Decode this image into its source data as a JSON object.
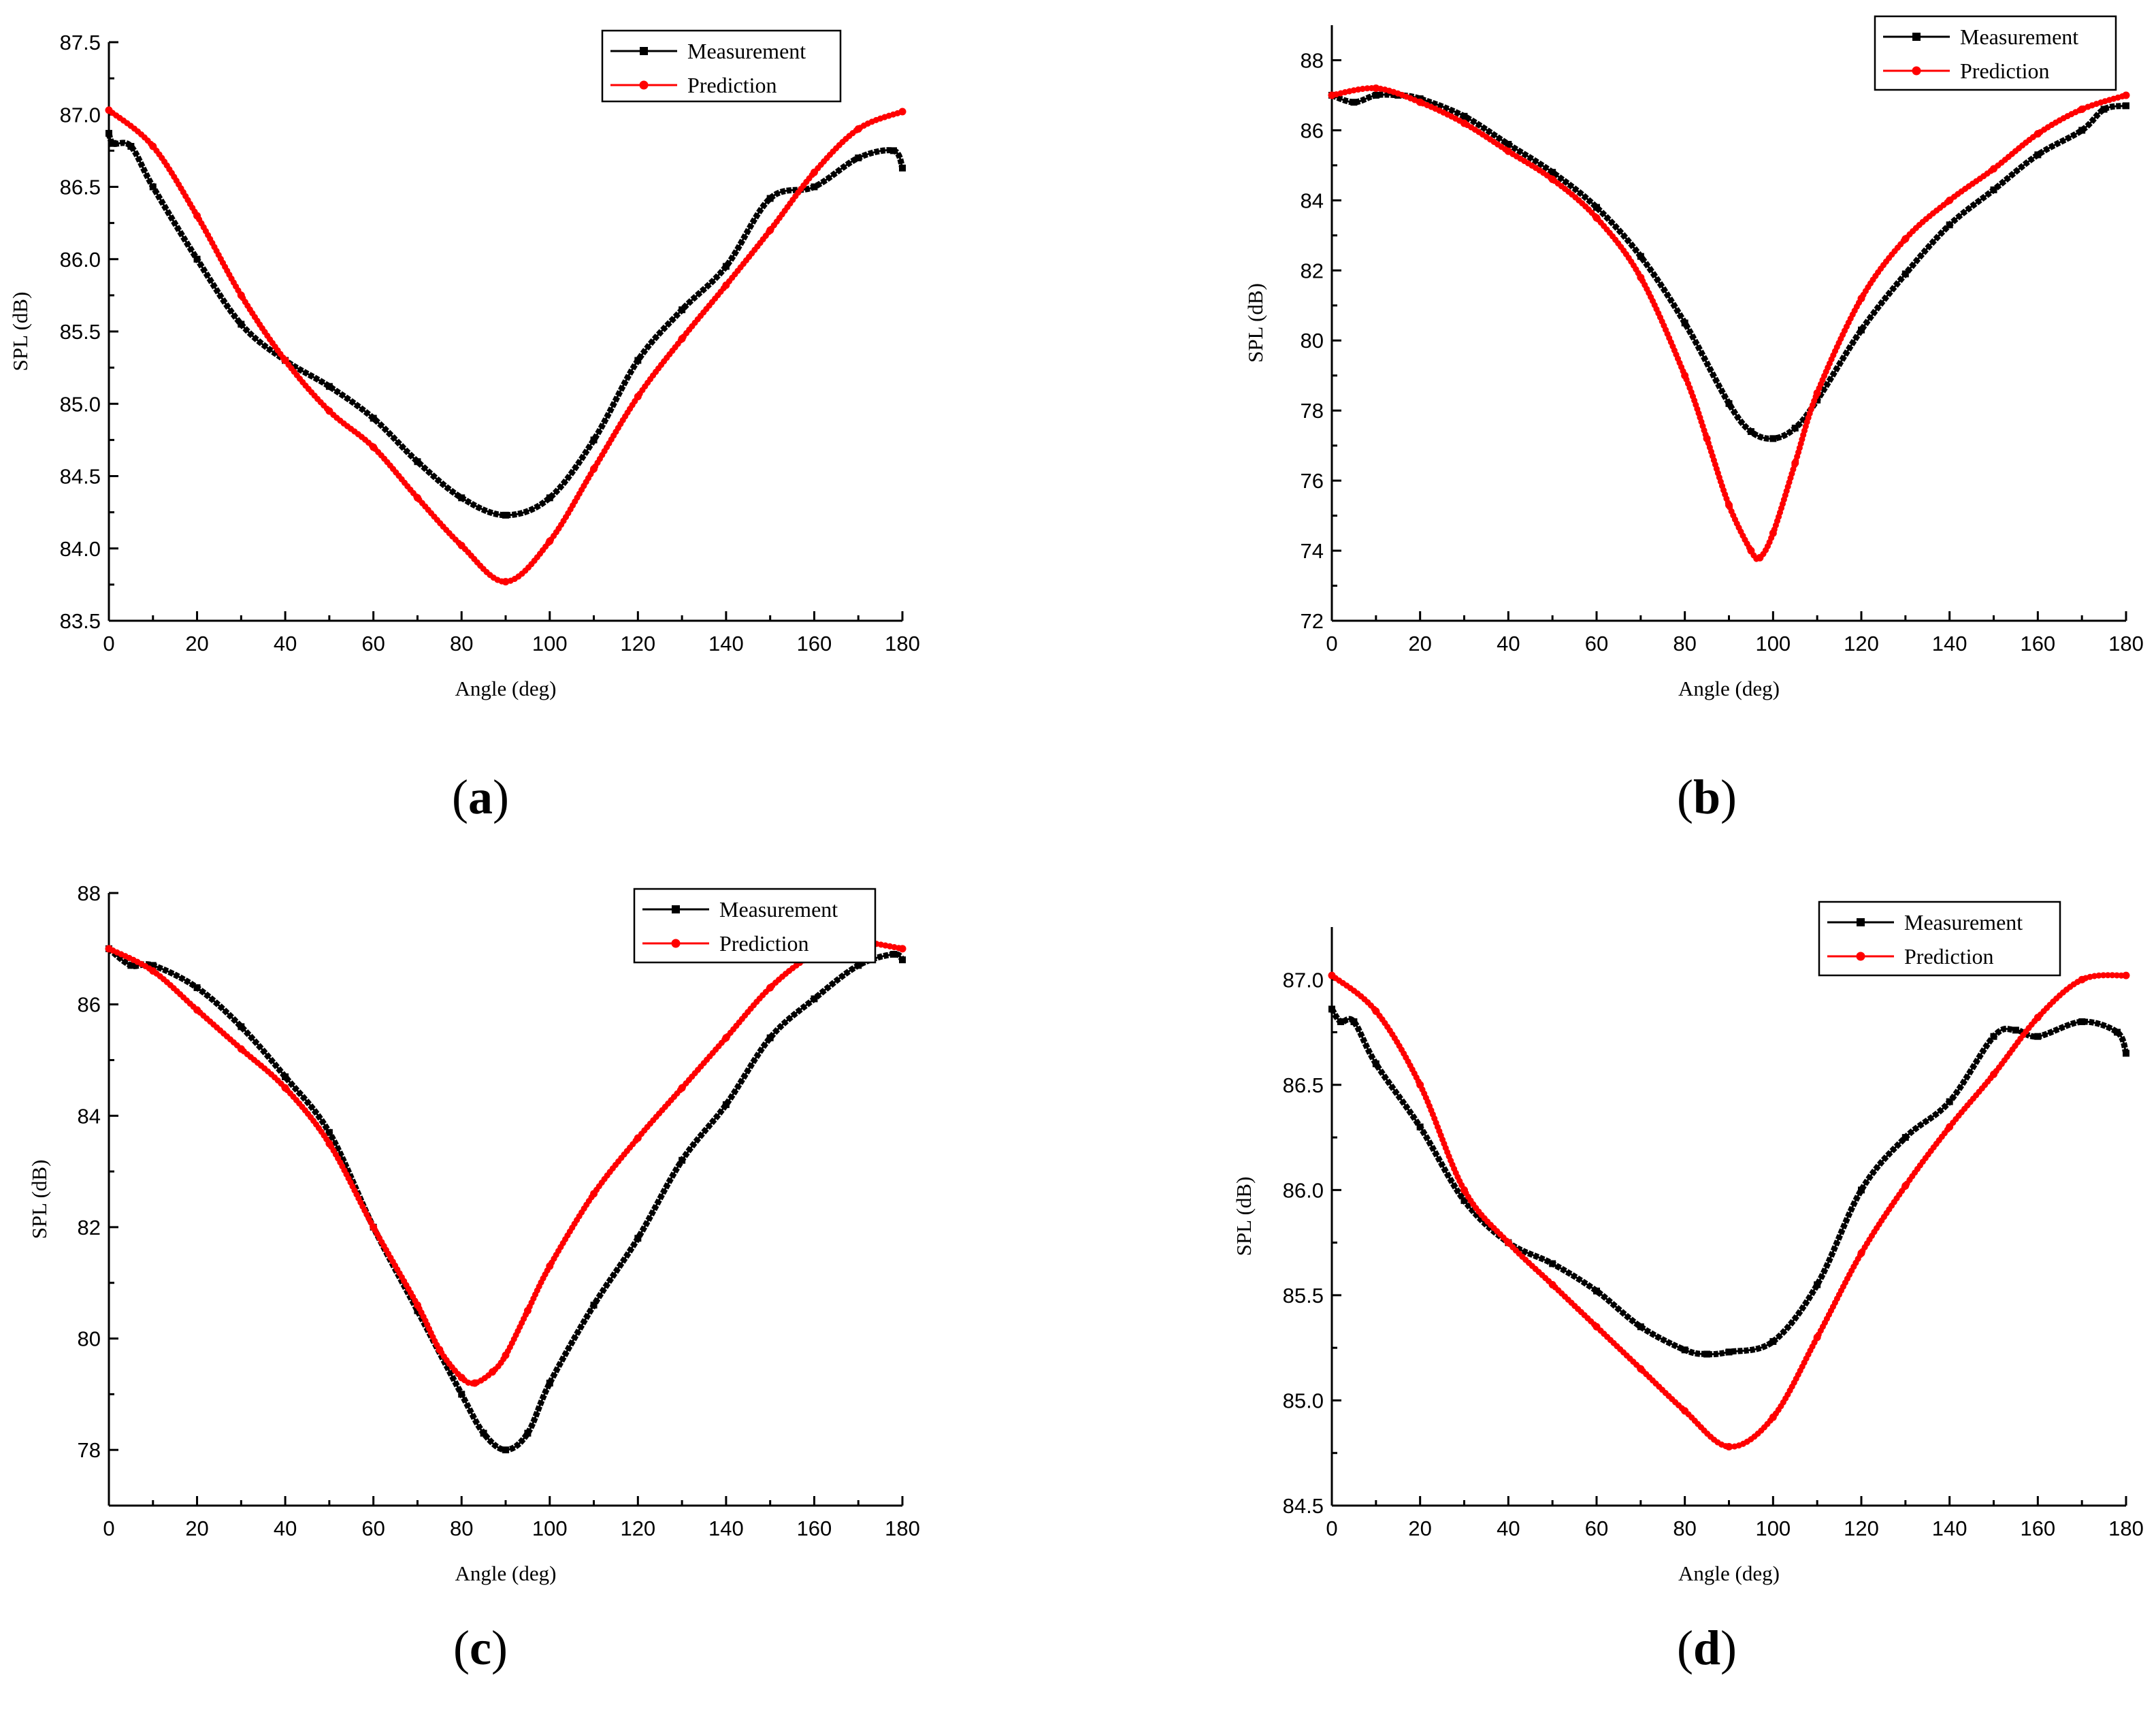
{
  "chart_data": [
    {
      "panel": "a",
      "type": "line",
      "xlabel": "Angle (deg)",
      "ylabel": "SPL (dB)",
      "xlim": [
        0,
        180
      ],
      "ylim": [
        83.5,
        87.5
      ],
      "xticks": [
        "0",
        "20",
        "40",
        "60",
        "80",
        "100",
        "120",
        "140",
        "160",
        "180"
      ],
      "yticks": [
        "83.5",
        "84.0",
        "84.5",
        "85.0",
        "85.5",
        "86.0",
        "86.5",
        "87.0",
        "87.5"
      ],
      "series": [
        {
          "name": "Measurement",
          "color": "#000000",
          "marker": "square",
          "x": [
            0,
            1,
            5,
            10,
            20,
            30,
            40,
            50,
            60,
            70,
            80,
            90,
            100,
            110,
            120,
            130,
            140,
            150,
            160,
            170,
            178,
            180
          ],
          "y": [
            86.87,
            86.8,
            86.78,
            86.5,
            86.0,
            85.55,
            85.3,
            85.12,
            84.9,
            84.6,
            84.35,
            84.23,
            84.35,
            84.75,
            85.3,
            85.65,
            85.95,
            86.42,
            86.5,
            86.7,
            86.75,
            86.63
          ]
        },
        {
          "name": "Prediction",
          "color": "#ff0000",
          "marker": "circle",
          "x": [
            0,
            10,
            20,
            30,
            40,
            50,
            60,
            70,
            80,
            90,
            100,
            110,
            120,
            130,
            140,
            150,
            160,
            170,
            180
          ],
          "y": [
            87.03,
            86.78,
            86.3,
            85.75,
            85.3,
            84.95,
            84.7,
            84.35,
            84.02,
            83.77,
            84.05,
            84.55,
            85.05,
            85.45,
            85.82,
            86.2,
            86.6,
            86.9,
            87.02
          ]
        }
      ]
    },
    {
      "panel": "b",
      "type": "line",
      "xlabel": "Angle (deg)",
      "ylabel": "SPL (dB)",
      "xlim": [
        0,
        180
      ],
      "ylim": [
        72,
        89
      ],
      "xticks": [
        "0",
        "20",
        "40",
        "60",
        "80",
        "100",
        "120",
        "140",
        "160",
        "180"
      ],
      "yticks": [
        "72",
        "74",
        "76",
        "78",
        "80",
        "82",
        "84",
        "86",
        "88"
      ],
      "series": [
        {
          "name": "Measurement",
          "color": "#000000",
          "marker": "square",
          "x": [
            0,
            5,
            10,
            15,
            20,
            30,
            40,
            50,
            60,
            70,
            80,
            90,
            95,
            100,
            105,
            110,
            120,
            130,
            140,
            150,
            160,
            170,
            175,
            180
          ],
          "y": [
            87.0,
            86.8,
            87.0,
            87.0,
            86.9,
            86.4,
            85.6,
            84.8,
            83.8,
            82.4,
            80.5,
            78.2,
            77.4,
            77.2,
            77.5,
            78.3,
            80.3,
            81.9,
            83.3,
            84.3,
            85.3,
            86.0,
            86.6,
            86.7
          ]
        },
        {
          "name": "Prediction",
          "color": "#ff0000",
          "marker": "circle",
          "x": [
            0,
            10,
            20,
            30,
            40,
            50,
            60,
            70,
            80,
            85,
            90,
            95,
            97,
            100,
            105,
            110,
            120,
            130,
            140,
            150,
            160,
            170,
            180
          ],
          "y": [
            87.0,
            87.2,
            86.8,
            86.2,
            85.4,
            84.6,
            83.5,
            81.8,
            79.0,
            77.2,
            75.3,
            74.0,
            73.8,
            74.5,
            76.5,
            78.5,
            81.2,
            82.9,
            84.0,
            84.9,
            85.9,
            86.6,
            87.0
          ]
        }
      ]
    },
    {
      "panel": "c",
      "type": "line",
      "xlabel": "Angle (deg)",
      "ylabel": "SPL (dB)",
      "xlim": [
        0,
        180
      ],
      "ylim": [
        77,
        88
      ],
      "xticks": [
        "0",
        "20",
        "40",
        "60",
        "80",
        "100",
        "120",
        "140",
        "160",
        "180"
      ],
      "yticks": [
        "78",
        "80",
        "82",
        "84",
        "86",
        "88"
      ],
      "series": [
        {
          "name": "Measurement",
          "color": "#000000",
          "marker": "square",
          "x": [
            0,
            5,
            10,
            20,
            30,
            40,
            50,
            60,
            70,
            80,
            85,
            90,
            95,
            100,
            110,
            120,
            130,
            140,
            150,
            160,
            170,
            178,
            180
          ],
          "y": [
            87.0,
            86.7,
            86.7,
            86.3,
            85.6,
            84.7,
            83.7,
            82.0,
            80.5,
            79.0,
            78.3,
            78.0,
            78.3,
            79.2,
            80.6,
            81.8,
            83.2,
            84.2,
            85.4,
            86.1,
            86.7,
            86.9,
            86.8
          ]
        },
        {
          "name": "Prediction",
          "color": "#ff0000",
          "marker": "circle",
          "x": [
            0,
            10,
            20,
            30,
            40,
            50,
            60,
            70,
            75,
            80,
            83,
            87,
            90,
            95,
            100,
            110,
            120,
            130,
            140,
            150,
            160,
            170,
            173,
            180
          ],
          "y": [
            87.0,
            86.6,
            85.9,
            85.2,
            84.5,
            83.5,
            82.0,
            80.6,
            79.8,
            79.3,
            79.2,
            79.4,
            79.7,
            80.5,
            81.3,
            82.6,
            83.6,
            84.5,
            85.4,
            86.3,
            86.9,
            87.1,
            87.1,
            87.0
          ]
        }
      ]
    },
    {
      "panel": "d",
      "type": "line",
      "xlabel": "Angle (deg)",
      "ylabel": "SPL (dB)",
      "xlim": [
        0,
        180
      ],
      "ylim": [
        84.5,
        87.25
      ],
      "xticks": [
        "0",
        "20",
        "40",
        "60",
        "80",
        "100",
        "120",
        "140",
        "160",
        "180"
      ],
      "yticks": [
        "84.5",
        "85.0",
        "85.5",
        "86.0",
        "86.5",
        "87.0"
      ],
      "series": [
        {
          "name": "Measurement",
          "color": "#000000",
          "marker": "square",
          "x": [
            0,
            2,
            5,
            10,
            20,
            30,
            40,
            50,
            60,
            70,
            80,
            85,
            90,
            100,
            110,
            120,
            130,
            140,
            150,
            155,
            160,
            170,
            178,
            180
          ],
          "y": [
            86.86,
            86.8,
            86.8,
            86.6,
            86.3,
            85.95,
            85.75,
            85.65,
            85.52,
            85.35,
            85.24,
            85.22,
            85.23,
            85.28,
            85.55,
            86.0,
            86.25,
            86.42,
            86.73,
            86.76,
            86.73,
            86.8,
            86.75,
            86.65
          ]
        },
        {
          "name": "Prediction",
          "color": "#ff0000",
          "marker": "circle",
          "x": [
            0,
            10,
            20,
            30,
            40,
            50,
            60,
            70,
            80,
            90,
            100,
            110,
            120,
            130,
            140,
            150,
            160,
            170,
            180
          ],
          "y": [
            87.02,
            86.85,
            86.5,
            86.0,
            85.75,
            85.55,
            85.35,
            85.15,
            84.95,
            84.78,
            84.92,
            85.3,
            85.7,
            86.02,
            86.3,
            86.55,
            86.82,
            87.0,
            87.02
          ]
        }
      ]
    }
  ],
  "legend": {
    "measurement": "Measurement",
    "prediction": "Prediction"
  },
  "panel_labels": [
    {
      "open": "(",
      "letter": "a",
      "close": ")"
    },
    {
      "open": "(",
      "letter": "b",
      "close": ")"
    },
    {
      "open": "(",
      "letter": "c",
      "close": ")"
    },
    {
      "open": "(",
      "letter": "d",
      "close": ")"
    }
  ]
}
